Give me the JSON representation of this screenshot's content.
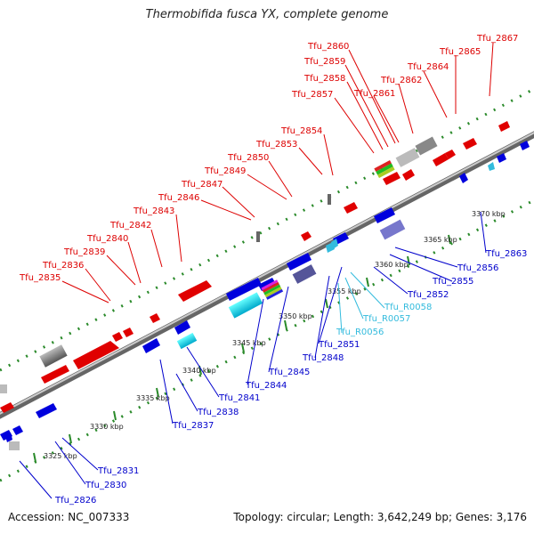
{
  "title": "Thermobifida fusca YX, complete genome",
  "accession": "Accession: NC_007333",
  "summary": "Topology: circular; Length: 3,642,249 bp; Genes: 3,176",
  "colors": {
    "forward": "#dd0000",
    "reverse": "#0000cc",
    "rna": "#33bbdd",
    "backbone": "#888888",
    "ticks": "#008800"
  },
  "forward_labels": [
    "Tfu_2835",
    "Tfu_2836",
    "Tfu_2839",
    "Tfu_2840",
    "Tfu_2842",
    "Tfu_2843",
    "Tfu_2846",
    "Tfu_2847",
    "Tfu_2849",
    "Tfu_2850",
    "Tfu_2853",
    "Tfu_2854",
    "Tfu_2857",
    "Tfu_2858",
    "Tfu_2859",
    "Tfu_2860",
    "Tfu_2861",
    "Tfu_2862",
    "Tfu_2864",
    "Tfu_2865",
    "Tfu_2867"
  ],
  "reverse_labels": [
    "Tfu_2826",
    "Tfu_2830",
    "Tfu_2831",
    "Tfu_2837",
    "Tfu_2838",
    "Tfu_2841",
    "Tfu_2844",
    "Tfu_2845",
    "Tfu_2848",
    "Tfu_2851",
    "Tfu_2852",
    "Tfu_2855",
    "Tfu_2856",
    "Tfu_2863"
  ],
  "rna_labels": [
    "Tfu_R0056",
    "Tfu_R0057",
    "Tfu_R0058"
  ],
  "scale_labels": [
    "3325 kbp",
    "3330 kbp",
    "3335 kbp",
    "3340 kbp",
    "3345 kbp",
    "3350 kbp",
    "3355 kbp",
    "3360 kbp",
    "3365 kbp",
    "3370 kbp"
  ]
}
